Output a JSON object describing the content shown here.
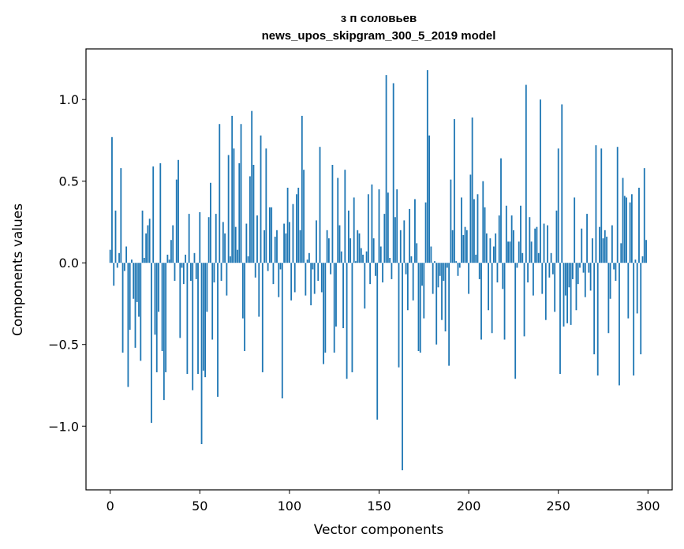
{
  "chart_data": {
    "type": "bar",
    "title": "з п соловьев\nnews_upos_skipgram_300_5_2019 model",
    "title_lines": [
      "з п соловьев",
      "news_upos_skipgram_300_5_2019 model"
    ],
    "xlabel": "Vector components",
    "ylabel": "Components values",
    "xlim": [
      -13.5,
      313.5
    ],
    "ylim": [
      -1.39,
      1.31
    ],
    "xticks": [
      0,
      50,
      100,
      150,
      200,
      250,
      300
    ],
    "xtick_labels": [
      "0",
      "50",
      "100",
      "150",
      "200",
      "250",
      "300"
    ],
    "yticks": [
      -1.0,
      -0.5,
      0.0,
      0.5,
      1.0
    ],
    "ytick_labels": [
      "−1.0",
      "−0.5",
      "0.0",
      "0.5",
      "1.0"
    ],
    "bar_color": "#1f77b4",
    "grid": false,
    "legend": "none",
    "x_start": 0,
    "values": [
      0.08,
      0.77,
      -0.14,
      0.32,
      -0.03,
      0.06,
      0.58,
      -0.55,
      -0.05,
      0.1,
      -0.76,
      -0.41,
      0.02,
      -0.22,
      -0.52,
      -0.24,
      -0.33,
      -0.6,
      0.32,
      0.03,
      0.18,
      0.23,
      0.27,
      -0.98,
      0.59,
      -0.44,
      -0.67,
      -0.3,
      0.61,
      -0.54,
      -0.84,
      -0.67,
      0.05,
      0.02,
      0.14,
      0.23,
      -0.11,
      0.51,
      0.63,
      -0.46,
      -0.03,
      -0.13,
      0.05,
      -0.68,
      0.3,
      -0.11,
      -0.78,
      0.06,
      -0.1,
      -0.68,
      0.31,
      -1.11,
      -0.66,
      -0.7,
      -0.3,
      0.28,
      0.49,
      -0.47,
      -0.12,
      0.3,
      -0.82,
      0.85,
      -0.11,
      0.25,
      0.18,
      -0.2,
      0.66,
      0.04,
      0.9,
      0.7,
      0.22,
      0.08,
      0.61,
      0.85,
      -0.34,
      -0.54,
      0.24,
      0.04,
      0.53,
      0.93,
      0.6,
      -0.09,
      0.29,
      -0.33,
      0.78,
      -0.67,
      0.2,
      0.7,
      -0.05,
      0.34,
      0.34,
      -0.13,
      0.16,
      0.2,
      -0.21,
      -0.04,
      -0.83,
      0.24,
      0.18,
      0.46,
      0.25,
      -0.23,
      0.36,
      -0.18,
      0.42,
      0.46,
      0.2,
      0.9,
      0.57,
      -0.2,
      0.02,
      0.06,
      -0.26,
      -0.04,
      -0.19,
      0.26,
      -0.11,
      0.71,
      -0.18,
      -0.62,
      -0.55,
      0.2,
      0.15,
      -0.07,
      0.6,
      -0.55,
      -0.39,
      0.52,
      0.23,
      0.07,
      -0.4,
      0.57,
      -0.71,
      0.32,
      0.15,
      -0.67,
      0.4,
      0.01,
      0.2,
      0.18,
      0.09,
      0.05,
      -0.28,
      0.07,
      0.42,
      -0.13,
      0.48,
      0.15,
      -0.08,
      -0.96,
      0.45,
      0.1,
      -0.12,
      0.3,
      1.15,
      0.43,
      0.03,
      -0.1,
      1.1,
      0.28,
      0.45,
      -0.64,
      0.2,
      -1.27,
      0.26,
      -0.07,
      -0.29,
      0.33,
      0.04,
      -0.23,
      0.39,
      0.12,
      -0.54,
      -0.55,
      -0.14,
      -0.34,
      0.37,
      1.18,
      0.78,
      0.1,
      -0.19,
      0.01,
      -0.5,
      -0.15,
      -0.08,
      -0.35,
      -0.11,
      -0.42,
      -0.03,
      -0.63,
      0.51,
      0.2,
      0.88,
      0.01,
      -0.08,
      -0.03,
      0.4,
      0.17,
      0.22,
      0.2,
      -0.19,
      0.54,
      0.89,
      0.39,
      0.05,
      0.42,
      -0.1,
      -0.47,
      0.5,
      0.34,
      0.18,
      -0.29,
      0.15,
      -0.43,
      0.1,
      0.18,
      -0.12,
      0.29,
      0.64,
      -0.16,
      -0.47,
      0.35,
      0.13,
      0.13,
      0.29,
      0.2,
      -0.71,
      -0.03,
      0.13,
      0.35,
      0.06,
      -0.45,
      1.09,
      -0.12,
      0.28,
      0.13,
      -0.2,
      0.21,
      0.22,
      0.06,
      1.0,
      -0.19,
      0.24,
      -0.35,
      0.23,
      -0.09,
      0.06,
      -0.07,
      -0.3,
      0.32,
      0.7,
      -0.68,
      0.97,
      -0.39,
      -0.2,
      -0.37,
      -0.15,
      -0.38,
      -0.1,
      0.4,
      -0.29,
      -0.13,
      -0.03,
      0.21,
      -0.06,
      -0.21,
      0.3,
      -0.06,
      -0.17,
      0.15,
      -0.56,
      0.72,
      -0.69,
      0.22,
      0.7,
      0.15,
      0.2,
      0.16,
      -0.43,
      -0.22,
      0.23,
      -0.04,
      -0.11,
      0.71,
      -0.75,
      0.12,
      0.52,
      0.41,
      0.4,
      -0.34,
      0.37,
      0.42,
      -0.69,
      0.02,
      -0.31,
      0.46,
      -0.56,
      0.04,
      0.58,
      0.14
    ]
  }
}
